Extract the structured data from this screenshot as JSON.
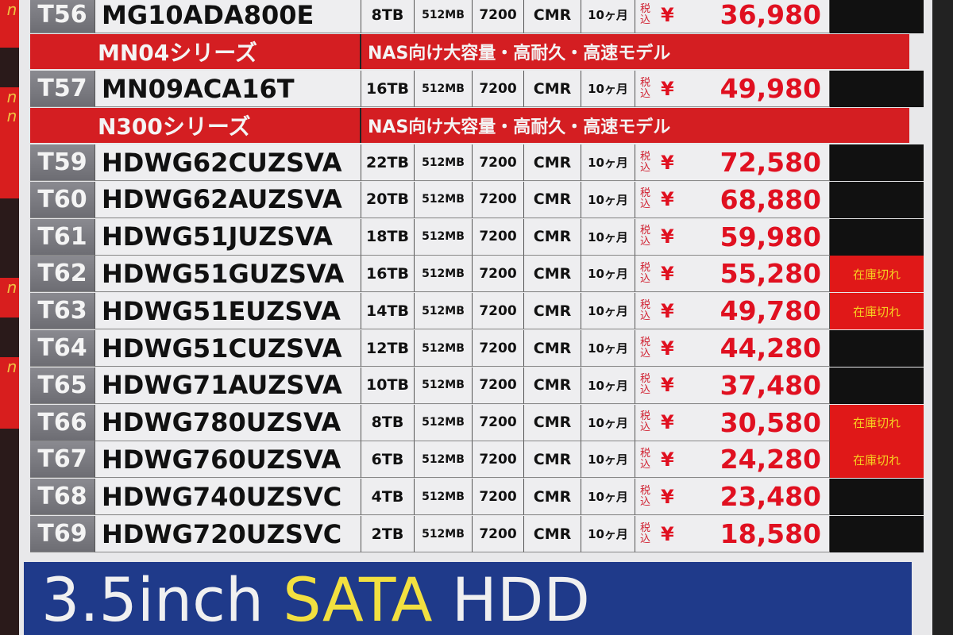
{
  "top_row": {
    "id": "T56",
    "model": "MG10ADA800E",
    "capacity": "8TB",
    "cache": "512MB",
    "rpm": "7200",
    "recording": "CMR",
    "warranty": "10ヶ月",
    "tax_label": "税込",
    "yen": "¥",
    "price": "36,980",
    "stock": ""
  },
  "series": [
    {
      "name": "MN04シリーズ",
      "desc": "NAS向け大容量・高耐久・高速モデル"
    },
    {
      "name": "N300シリーズ",
      "desc": "NAS向け大容量・高耐久・高速モデル"
    }
  ],
  "mn04_rows": [
    {
      "id": "T57",
      "model": "MN09ACA16T",
      "capacity": "16TB",
      "cache": "512MB",
      "rpm": "7200",
      "recording": "CMR",
      "warranty": "10ヶ月",
      "tax_label": "税込",
      "yen": "¥",
      "price": "49,980",
      "stock": ""
    }
  ],
  "n300_rows": [
    {
      "id": "T59",
      "model": "HDWG62CUZSVA",
      "capacity": "22TB",
      "cache": "512MB",
      "rpm": "7200",
      "recording": "CMR",
      "warranty": "10ヶ月",
      "tax_label": "税込",
      "yen": "¥",
      "price": "72,580",
      "stock": ""
    },
    {
      "id": "T60",
      "model": "HDWG62AUZSVA",
      "capacity": "20TB",
      "cache": "512MB",
      "rpm": "7200",
      "recording": "CMR",
      "warranty": "10ヶ月",
      "tax_label": "税込",
      "yen": "¥",
      "price": "68,880",
      "stock": ""
    },
    {
      "id": "T61",
      "model": "HDWG51JUZSVA",
      "capacity": "18TB",
      "cache": "512MB",
      "rpm": "7200",
      "recording": "CMR",
      "warranty": "10ヶ月",
      "tax_label": "税込",
      "yen": "¥",
      "price": "59,980",
      "stock": ""
    },
    {
      "id": "T62",
      "model": "HDWG51GUZSVA",
      "capacity": "16TB",
      "cache": "512MB",
      "rpm": "7200",
      "recording": "CMR",
      "warranty": "10ヶ月",
      "tax_label": "税込",
      "yen": "¥",
      "price": "55,280",
      "stock": "在庫切れ"
    },
    {
      "id": "T63",
      "model": "HDWG51EUZSVA",
      "capacity": "14TB",
      "cache": "512MB",
      "rpm": "7200",
      "recording": "CMR",
      "warranty": "10ヶ月",
      "tax_label": "税込",
      "yen": "¥",
      "price": "49,780",
      "stock": "在庫切れ"
    },
    {
      "id": "T64",
      "model": "HDWG51CUZSVA",
      "capacity": "12TB",
      "cache": "512MB",
      "rpm": "7200",
      "recording": "CMR",
      "warranty": "10ヶ月",
      "tax_label": "税込",
      "yen": "¥",
      "price": "44,280",
      "stock": ""
    },
    {
      "id": "T65",
      "model": "HDWG71AUZSVA",
      "capacity": "10TB",
      "cache": "512MB",
      "rpm": "7200",
      "recording": "CMR",
      "warranty": "10ヶ月",
      "tax_label": "税込",
      "yen": "¥",
      "price": "37,480",
      "stock": ""
    },
    {
      "id": "T66",
      "model": "HDWG780UZSVA",
      "capacity": "8TB",
      "cache": "512MB",
      "rpm": "7200",
      "recording": "CMR",
      "warranty": "10ヶ月",
      "tax_label": "税込",
      "yen": "¥",
      "price": "30,580",
      "stock": "在庫切れ"
    },
    {
      "id": "T67",
      "model": "HDWG760UZSVA",
      "capacity": "6TB",
      "cache": "512MB",
      "rpm": "7200",
      "recording": "CMR",
      "warranty": "10ヶ月",
      "tax_label": "税込",
      "yen": "¥",
      "price": "24,280",
      "stock": "在庫切れ"
    },
    {
      "id": "T68",
      "model": "HDWG740UZSVC",
      "capacity": "4TB",
      "cache": "512MB",
      "rpm": "7200",
      "recording": "CMR",
      "warranty": "10ヶ月",
      "tax_label": "税込",
      "yen": "¥",
      "price": "23,480",
      "stock": ""
    },
    {
      "id": "T69",
      "model": "HDWG720UZSVC",
      "capacity": "2TB",
      "cache": "512MB",
      "rpm": "7200",
      "recording": "CMR",
      "warranty": "10ヶ月",
      "tax_label": "税込",
      "yen": "¥",
      "price": "18,580",
      "stock": ""
    }
  ],
  "banner": {
    "prefix": "3.5inch",
    "highlight": "SATA",
    "suffix": "HDD"
  },
  "colors": {
    "header_red": "#d41e22",
    "price_red": "#e01020",
    "out_of_stock_bg": "#e01818",
    "banner_blue": "#1f3a8a",
    "highlight_yellow": "#f2e040"
  }
}
